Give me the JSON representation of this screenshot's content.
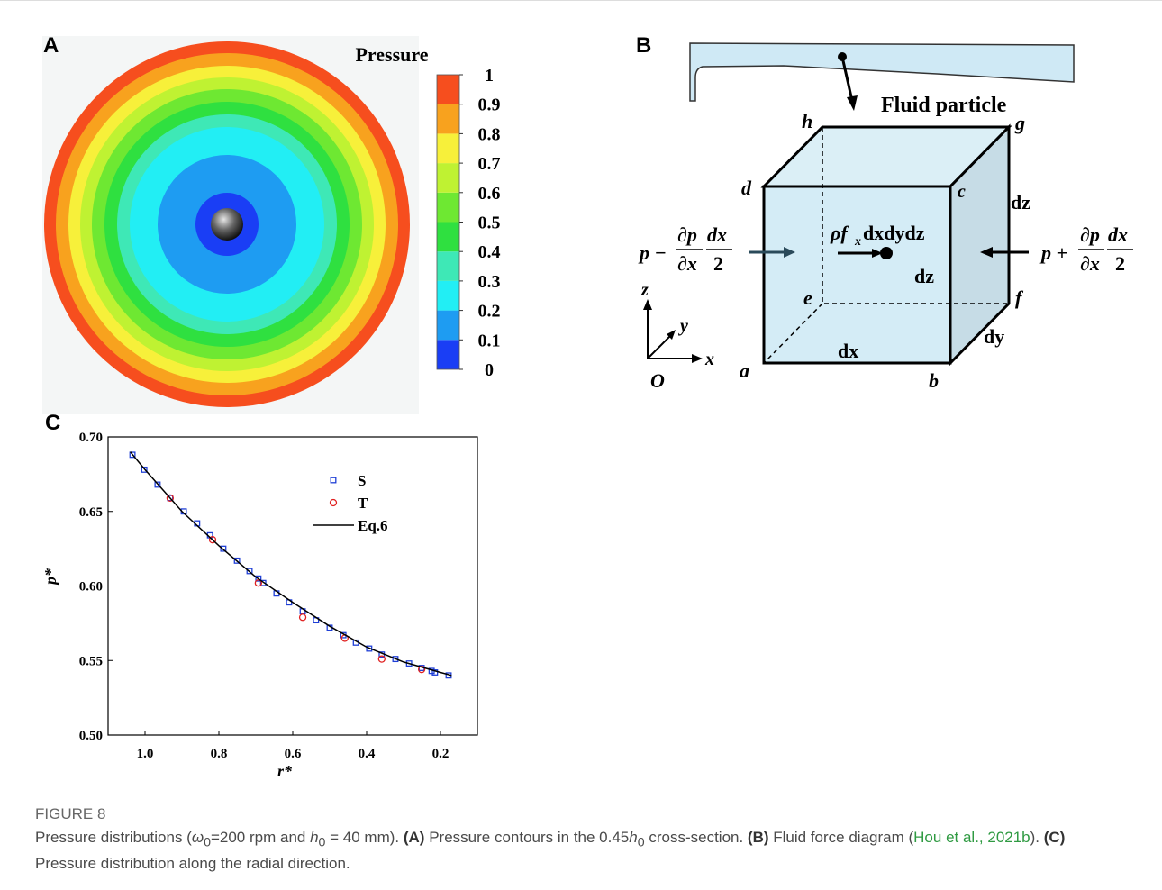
{
  "panel_a": {
    "label": "A",
    "colorbar_title": "Pressure",
    "colorbar_ticks": [
      0,
      0.1,
      0.2,
      0.3,
      0.4,
      0.5,
      0.6,
      0.7,
      0.8,
      0.9,
      1
    ],
    "band_colors": [
      "#1a3ef5",
      "#1e9cf2",
      "#22eef4",
      "#3ee8b6",
      "#2fe040",
      "#6ee832",
      "#bff232",
      "#f7f03a",
      "#f8a21e",
      "#f64e1e"
    ]
  },
  "panel_b": {
    "label": "B",
    "fluid_particle": "Fluid particle",
    "vertices": [
      "h",
      "g",
      "d",
      "c",
      "e",
      "f",
      "a",
      "b"
    ],
    "edge_labels": [
      "dz",
      "dz",
      "dx",
      "dy"
    ],
    "axes": [
      "z",
      "y",
      "x",
      "O"
    ],
    "left_force": [
      "p −",
      "∂p",
      "∂x",
      "dx",
      "2"
    ],
    "right_force": [
      "p +",
      "∂p",
      "∂x",
      "dx",
      "2"
    ],
    "body_force": [
      "ρf",
      "x",
      "dxdydz"
    ]
  },
  "chart_data": {
    "type": "scatter",
    "panel_label": "C",
    "xlabel": "r*",
    "ylabel": "p*",
    "xlim": [
      1.1,
      0.1
    ],
    "xticks": [
      {
        "value": 1,
        "label": "1.0"
      },
      0.8,
      0.6,
      0.4,
      0.2
    ],
    "ylim": [
      0.5,
      0.7
    ],
    "yticks": [
      {
        "value": 0.5,
        "label": "0.50"
      },
      0.55,
      {
        "value": 0.6,
        "label": "0.60"
      },
      0.65,
      {
        "value": 0.7,
        "label": "0.70"
      }
    ],
    "legend": "upper right",
    "series": [
      {
        "name": "S",
        "color": "#1f3fd6",
        "marker": "square",
        "x": [
          1.034,
          1.002,
          0.966,
          0.932,
          0.895,
          0.859,
          0.824,
          0.788,
          0.751,
          0.717,
          0.693,
          0.68,
          0.644,
          0.61,
          0.573,
          0.537,
          0.5,
          0.463,
          0.429,
          0.393,
          0.359,
          0.322,
          0.285,
          0.251,
          0.224,
          0.215,
          0.178
        ],
        "values": [
          0.688,
          0.678,
          0.668,
          0.659,
          0.65,
          0.642,
          0.634,
          0.625,
          0.617,
          0.61,
          0.605,
          0.602,
          0.595,
          0.589,
          0.583,
          0.577,
          0.572,
          0.567,
          0.562,
          0.558,
          0.554,
          0.551,
          0.548,
          0.545,
          0.543,
          0.542,
          0.54
        ]
      },
      {
        "name": "T",
        "color": "#e02020",
        "marker": "circle",
        "x": [
          0.932,
          0.817,
          0.693,
          0.573,
          0.459,
          0.359,
          0.251
        ],
        "values": [
          0.659,
          0.631,
          0.602,
          0.579,
          0.565,
          0.551,
          0.544
        ]
      },
      {
        "name": "Eq.6",
        "color": "#000000",
        "marker": "line",
        "x": [
          1.04,
          1.0,
          0.9,
          0.8,
          0.7,
          0.6,
          0.5,
          0.4,
          0.3,
          0.2,
          0.17
        ],
        "values": [
          0.69,
          0.678,
          0.65,
          0.627,
          0.606,
          0.589,
          0.573,
          0.559,
          0.549,
          0.542,
          0.54
        ]
      }
    ]
  },
  "caption": {
    "figure": "FIGURE 8",
    "parts": [
      "Pressure distributions (",
      "ω",
      "0",
      "=200 rpm and ",
      "h",
      "0",
      " = 40 mm). ",
      "(A)",
      " Pressure contours in the 0.45",
      "h",
      "0",
      " cross-section. ",
      "(B)",
      " Fluid force diagram (",
      "Hou et al., 2021b",
      "). ",
      "(C)",
      " Pressure distribution along the radial direction."
    ]
  }
}
